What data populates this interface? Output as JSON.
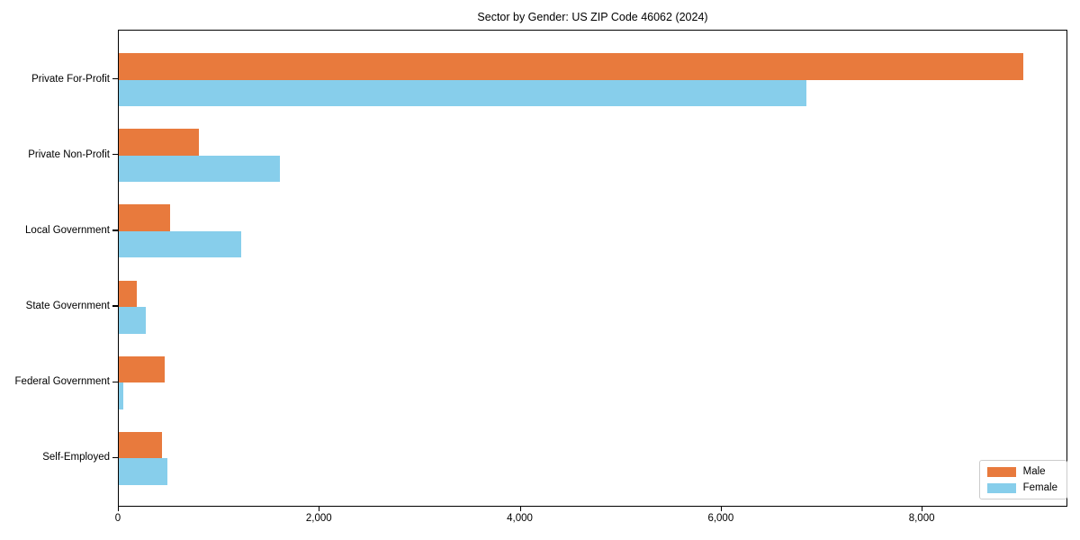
{
  "chart_data": {
    "type": "bar",
    "orientation": "horizontal",
    "title": "Sector by Gender: US ZIP Code 46062 (2024)",
    "categories": [
      "Private For-Profit",
      "Private Non-Profit",
      "Local Government",
      "State Government",
      "Federal Government",
      "Self-Employed"
    ],
    "series": [
      {
        "name": "Male",
        "color": "#e87a3d",
        "values": [
          9000,
          800,
          510,
          180,
          460,
          430
        ]
      },
      {
        "name": "Female",
        "color": "#87ceeb",
        "values": [
          6840,
          1600,
          1220,
          265,
          45,
          480
        ]
      }
    ],
    "xlabel": "",
    "ylabel": "",
    "xlim": [
      0,
      9450
    ],
    "xticks": [
      0,
      2000,
      4000,
      6000,
      8000
    ],
    "xtick_labels": [
      "0",
      "2,000",
      "4,000",
      "6,000",
      "8,000"
    ],
    "grid": false,
    "legend": {
      "position": "lower right",
      "entries": [
        {
          "label": "Male",
          "color": "#e87a3d"
        },
        {
          "label": "Female",
          "color": "#87ceeb"
        }
      ]
    }
  }
}
